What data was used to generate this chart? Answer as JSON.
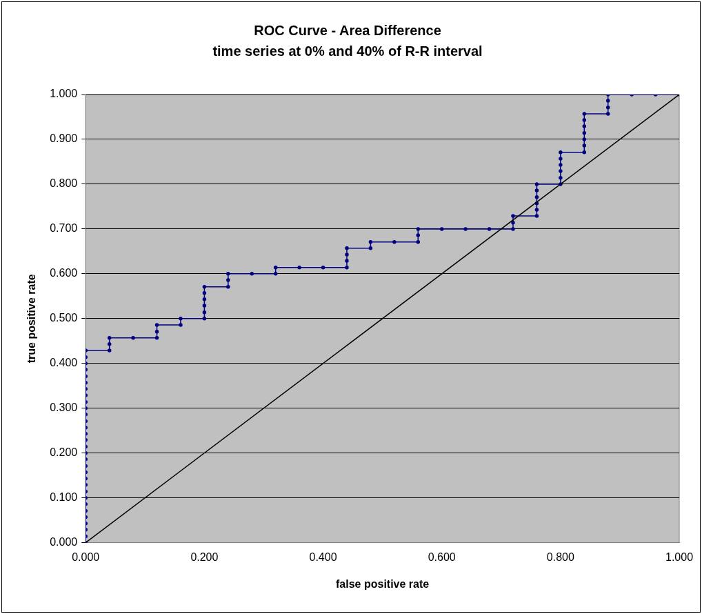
{
  "chart_data": {
    "type": "line",
    "title": "ROC Curve - Area Difference",
    "subtitle": "time series at 0% and 40% of R-R interval",
    "xlabel": "false positive rate",
    "ylabel": "true positive rate",
    "xlim": [
      0,
      1
    ],
    "ylim": [
      0,
      1
    ],
    "xticks": [
      {
        "value": 0,
        "label": "0.000"
      },
      {
        "value": 0.2,
        "label": "0.200"
      },
      {
        "value": 0.4,
        "label": "0.400"
      },
      {
        "value": 0.6,
        "label": "0.600"
      },
      {
        "value": 0.8,
        "label": "0.800"
      },
      {
        "value": 1,
        "label": "1.000"
      }
    ],
    "yticks": [
      {
        "value": 0,
        "label": "0.000"
      },
      {
        "value": 0.1,
        "label": "0.100"
      },
      {
        "value": 0.2,
        "label": "0.200"
      },
      {
        "value": 0.3,
        "label": "0.300"
      },
      {
        "value": 0.4,
        "label": "0.400"
      },
      {
        "value": 0.5,
        "label": "0.500"
      },
      {
        "value": 0.6,
        "label": "0.600"
      },
      {
        "value": 0.7,
        "label": "0.700"
      },
      {
        "value": 0.8,
        "label": "0.800"
      },
      {
        "value": 0.9,
        "label": "0.900"
      },
      {
        "value": 1,
        "label": "1.000"
      }
    ],
    "grid": "y",
    "legend": false,
    "series": [
      {
        "color": "#000080",
        "marker": "circle",
        "x": [
          0,
          0,
          0,
          0,
          0,
          0,
          0,
          0,
          0,
          0,
          0,
          0,
          0,
          0,
          0,
          0,
          0,
          0,
          0,
          0,
          0,
          0,
          0,
          0,
          0,
          0,
          0,
          0,
          0,
          0,
          0,
          0.04,
          0.04,
          0.04,
          0.08,
          0.12,
          0.12,
          0.12,
          0.16,
          0.16,
          0.2,
          0.2,
          0.2,
          0.2,
          0.2,
          0.2,
          0.24,
          0.24,
          0.24,
          0.28,
          0.32,
          0.32,
          0.36,
          0.4,
          0.44,
          0.44,
          0.44,
          0.44,
          0.48,
          0.48,
          0.52,
          0.56,
          0.56,
          0.56,
          0.6,
          0.64,
          0.68,
          0.72,
          0.72,
          0.72,
          0.76,
          0.76,
          0.76,
          0.76,
          0.76,
          0.76,
          0.8,
          0.8,
          0.8,
          0.8,
          0.8,
          0.8,
          0.84,
          0.84,
          0.84,
          0.84,
          0.84,
          0.84,
          0.84,
          0.88,
          0.88,
          0.88,
          0.88,
          0.92,
          0.96,
          1
        ],
        "values": [
          0,
          0.014,
          0.029,
          0.043,
          0.057,
          0.071,
          0.086,
          0.1,
          0.114,
          0.129,
          0.143,
          0.157,
          0.171,
          0.186,
          0.2,
          0.214,
          0.229,
          0.243,
          0.257,
          0.271,
          0.286,
          0.3,
          0.314,
          0.329,
          0.343,
          0.357,
          0.371,
          0.386,
          0.4,
          0.414,
          0.429,
          0.429,
          0.443,
          0.457,
          0.457,
          0.457,
          0.471,
          0.486,
          0.486,
          0.5,
          0.5,
          0.514,
          0.529,
          0.543,
          0.557,
          0.571,
          0.571,
          0.586,
          0.6,
          0.6,
          0.6,
          0.614,
          0.614,
          0.614,
          0.614,
          0.629,
          0.643,
          0.657,
          0.657,
          0.671,
          0.671,
          0.671,
          0.686,
          0.7,
          0.7,
          0.7,
          0.7,
          0.7,
          0.714,
          0.729,
          0.729,
          0.743,
          0.757,
          0.771,
          0.786,
          0.8,
          0.8,
          0.814,
          0.829,
          0.843,
          0.857,
          0.871,
          0.871,
          0.886,
          0.9,
          0.914,
          0.929,
          0.943,
          0.957,
          0.957,
          0.971,
          0.986,
          1,
          1,
          1,
          1
        ]
      },
      {
        "color": "#000000",
        "marker": "none",
        "x": [
          0,
          1
        ],
        "values": [
          0,
          1
        ]
      }
    ]
  }
}
